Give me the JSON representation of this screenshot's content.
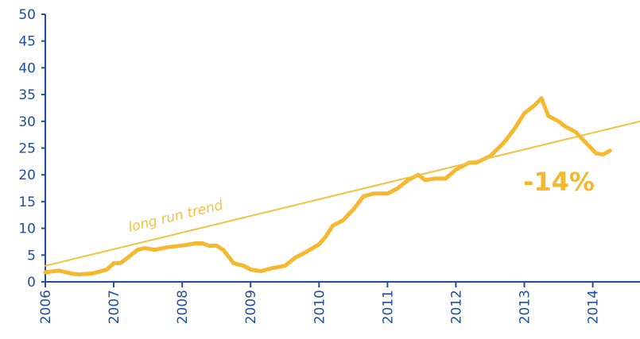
{
  "chart_data": {
    "type": "line",
    "series": [
      {
        "color": "#f5b82e",
        "x": [
          2006.0,
          2006.2,
          2006.4,
          2006.5,
          2006.7,
          2006.9,
          2007.0,
          2007.1,
          2007.2,
          2007.35,
          2007.45,
          2007.6,
          2007.8,
          2008.0,
          2008.2,
          2008.3,
          2008.4,
          2008.5,
          2008.6,
          2008.75,
          2008.9,
          2009.0,
          2009.15,
          2009.3,
          2009.5,
          2009.65,
          2009.8,
          2010.0,
          2010.1,
          2010.2,
          2010.35,
          2010.5,
          2010.65,
          2010.8,
          2011.0,
          2011.15,
          2011.3,
          2011.45,
          2011.55,
          2011.7,
          2011.85,
          2012.0,
          2012.2,
          2012.3,
          2012.5,
          2012.7,
          2012.85,
          2013.0,
          2013.15,
          2013.25,
          2013.35,
          2013.5,
          2013.6,
          2013.75,
          2013.9,
          2014.05,
          2014.15,
          2014.25
        ],
        "values": [
          1.8,
          2.1,
          1.5,
          1.4,
          1.6,
          2.3,
          3.5,
          3.5,
          4.5,
          6.0,
          6.3,
          6.0,
          6.5,
          6.8,
          7.2,
          7.2,
          6.7,
          6.8,
          6.0,
          3.5,
          3.0,
          2.3,
          2.0,
          2.5,
          3.0,
          4.5,
          5.5,
          7.0,
          8.5,
          10.5,
          11.5,
          13.5,
          16.0,
          16.5,
          16.5,
          17.5,
          19.0,
          20.0,
          19.0,
          19.3,
          19.3,
          21.0,
          22.3,
          22.3,
          23.5,
          26.0,
          28.5,
          31.5,
          33.0,
          34.3,
          31.0,
          30.0,
          29.0,
          28.0,
          26.0,
          24.0,
          23.8,
          24.5
        ]
      },
      {
        "name": "long run trend",
        "color": "#f5c040",
        "x": [
          2006.0,
          2014.69
        ],
        "values": [
          3,
          30
        ]
      }
    ],
    "annotations": [
      {
        "text": "-14%"
      }
    ],
    "xlim": [
      2006,
      2014.69
    ],
    "xticks": [
      2006,
      2007,
      2008,
      2009,
      2010,
      2011,
      2012,
      2013,
      2014
    ],
    "ylim": [
      0,
      50
    ],
    "yticks": [
      0,
      5,
      10,
      15,
      20,
      25,
      30,
      35,
      40,
      45,
      50
    ],
    "axis_color": "#1f4e9e"
  }
}
